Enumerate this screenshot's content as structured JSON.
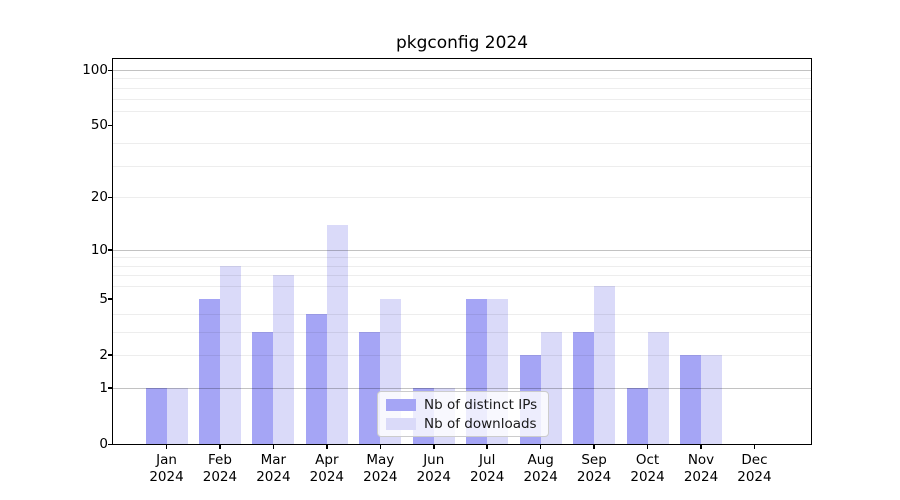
{
  "title": "pkgconfig 2024",
  "chart_data": {
    "type": "bar",
    "title": "pkgconfig 2024",
    "scale": "log1p",
    "categories": [
      "Jan",
      "Feb",
      "Mar",
      "Apr",
      "May",
      "Jun",
      "Jul",
      "Aug",
      "Sep",
      "Oct",
      "Nov",
      "Dec"
    ],
    "year": "2024",
    "series": [
      {
        "name": "Nb of distinct IPs",
        "color": "#a5a5f5",
        "values": [
          1,
          5,
          3,
          4,
          3,
          1,
          5,
          2,
          3,
          1,
          2,
          0
        ]
      },
      {
        "name": "Nb of downloads",
        "color": "#dadaf9",
        "values": [
          1,
          8,
          7,
          14,
          5,
          1,
          5,
          3,
          6,
          3,
          2,
          0
        ]
      }
    ],
    "yticks": [
      0,
      1,
      2,
      5,
      10,
      20,
      50,
      100
    ],
    "major_gridlines": [
      1,
      10,
      100
    ],
    "minor_gridlines": [
      2,
      3,
      4,
      6,
      7,
      8,
      9,
      20,
      30,
      40,
      60,
      70,
      80,
      90
    ],
    "ylim": [
      0,
      100
    ],
    "xlabel": "",
    "ylabel": "",
    "grid": true,
    "legend_position": "lower center"
  },
  "legend": {
    "items": [
      {
        "label": "Nb of distinct IPs",
        "color": "#a5a5f5"
      },
      {
        "label": "Nb of downloads",
        "color": "#dadaf9"
      }
    ]
  },
  "colors": {
    "background": "#ffffff",
    "axis": "#000000",
    "grid_major": "#c3c3c3",
    "grid_minor": "#ececec",
    "bar_ips": "#a5a5f5",
    "bar_downloads": "#dadaf9"
  }
}
